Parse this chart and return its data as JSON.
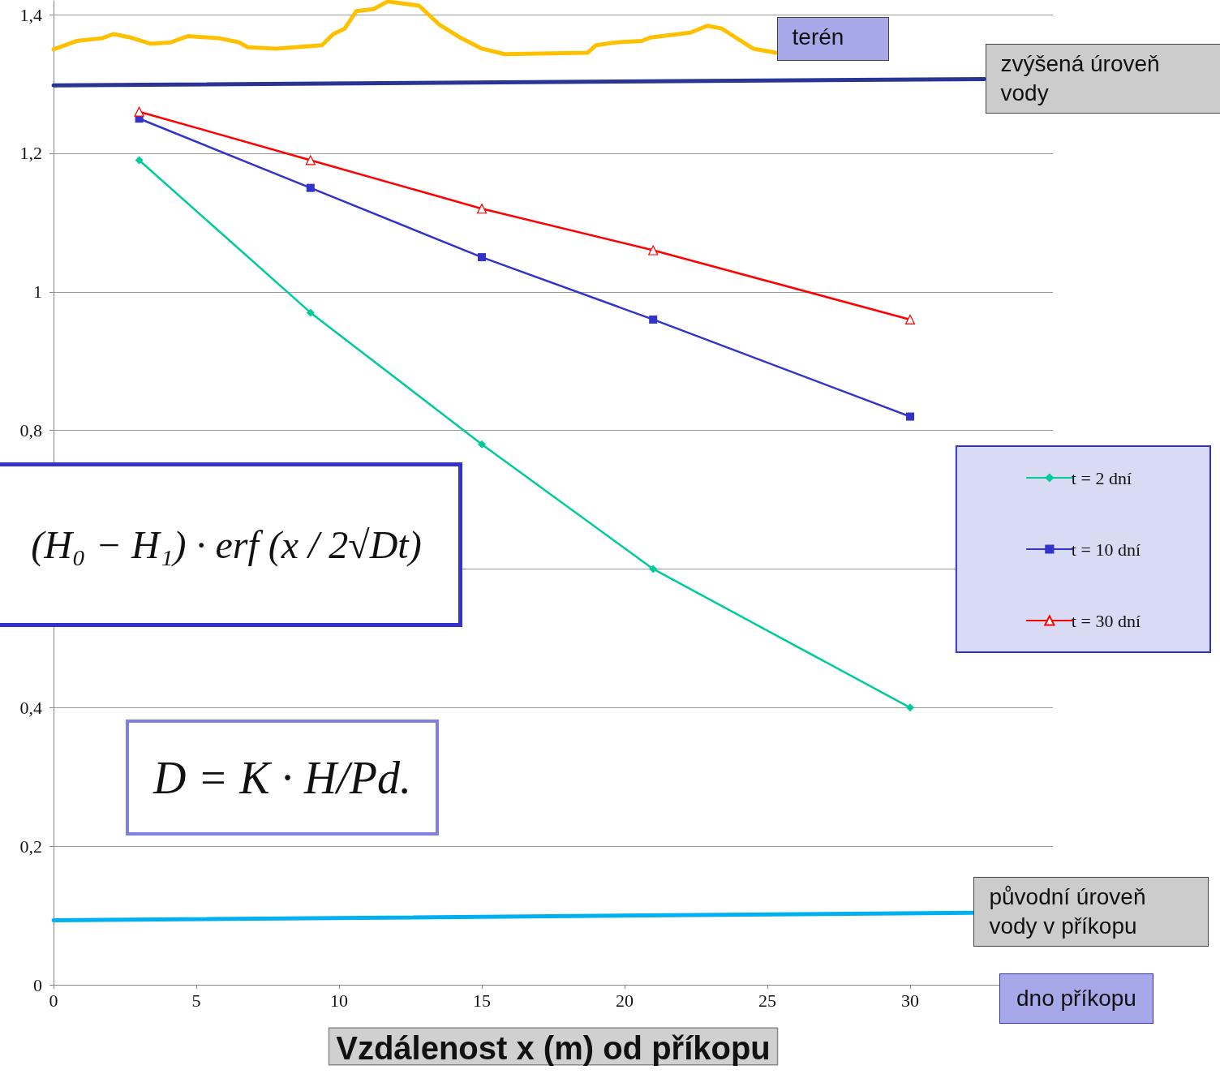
{
  "chart_data": {
    "type": "line",
    "xlabel": "Vzdálenost x (m) od příkopu",
    "xlim": [
      0,
      35
    ],
    "xticks": [
      0,
      5,
      10,
      15,
      20,
      25,
      30
    ],
    "ylim": [
      0,
      1.42
    ],
    "yticks": [
      0,
      {
        "value": 0.2,
        "label": "0,2"
      },
      {
        "value": 0.4,
        "label": "0,4"
      },
      {
        "value": 0.6,
        "label": null
      },
      {
        "value": 0.8,
        "label": "0,8"
      },
      1,
      {
        "value": 1.2,
        "label": "1,2"
      },
      {
        "value": 1.4,
        "label": "1,4"
      }
    ],
    "grid": "y",
    "legend": "right",
    "line_style": "solid",
    "series": [
      {
        "name": "t = 2 dní",
        "color": "#00cc99",
        "marker": "diamond",
        "x": [
          3,
          9,
          15,
          21,
          30
        ],
        "values": [
          1.19,
          0.97,
          0.78,
          0.6,
          0.4
        ]
      },
      {
        "name": "t = 10 dní",
        "color": "#3333cc",
        "marker": "square",
        "x": [
          3,
          9,
          15,
          21,
          30
        ],
        "values": [
          1.25,
          1.15,
          1.05,
          0.96,
          0.82
        ]
      },
      {
        "name": "t = 30 dní",
        "color": "#ff0000",
        "marker": "triangle",
        "x": [
          3,
          9,
          15,
          21,
          30
        ],
        "values": [
          1.26,
          1.19,
          1.12,
          1.06,
          0.96
        ]
      },
      {
        "name": "terén",
        "color": "#ffc000",
        "marker": "none",
        "x": [
          0,
          0.8,
          1.7,
          2.1,
          2.7,
          3.4,
          4.1,
          4.7,
          5.8,
          6.5,
          6.8,
          7.8,
          9.4,
          9.8,
          10.2,
          10.6,
          11.2,
          11.7,
          12.8,
          13.5,
          14.2,
          15,
          15.8,
          18.7,
          19,
          19.7,
          20.6,
          20.9,
          22.3,
          22.9,
          23.4,
          23.7,
          24.5,
          25.3
        ],
        "values": [
          1.35,
          1.362,
          1.366,
          1.372,
          1.367,
          1.358,
          1.36,
          1.369,
          1.366,
          1.36,
          1.353,
          1.351,
          1.356,
          1.372,
          1.38,
          1.405,
          1.408,
          1.419,
          1.413,
          1.386,
          1.368,
          1.351,
          1.343,
          1.345,
          1.356,
          1.36,
          1.362,
          1.367,
          1.374,
          1.384,
          1.38,
          1.372,
          1.351,
          1.345
        ]
      },
      {
        "name": "zvýšená úroveň vody",
        "color": "#283593",
        "marker": "none",
        "x": [
          0,
          32.6
        ],
        "values": [
          1.298,
          1.307
        ]
      },
      {
        "name": "původní úroveň vody v příkopu",
        "color": "#00b0f0",
        "marker": "none",
        "x": [
          0,
          32.2
        ],
        "values": [
          0.093,
          0.104
        ]
      }
    ],
    "annotations": [
      "(H₀ − H₁) · erf (x / 2√Dt)",
      "D = K · H/Pd.",
      "dno příkopu"
    ]
  }
}
